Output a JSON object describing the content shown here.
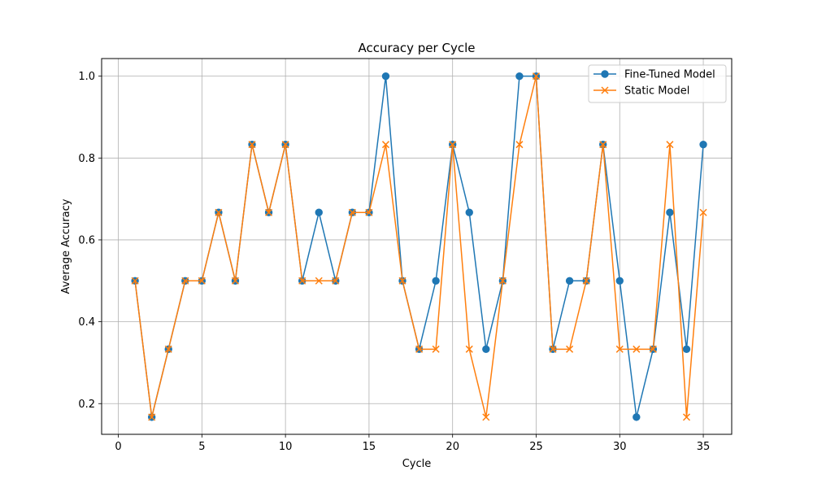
{
  "chart_data": {
    "type": "line",
    "title": "Accuracy per Cycle",
    "xlabel": "Cycle",
    "ylabel": "Average Accuracy",
    "xlim": [
      -1,
      36.7
    ],
    "ylim": [
      0.125,
      1.043
    ],
    "xticks": [
      0,
      5,
      10,
      15,
      20,
      25,
      30,
      35
    ],
    "yticks": [
      0.2,
      0.4,
      0.6,
      0.8,
      1.0
    ],
    "ytick_labels": [
      "0.2",
      "0.4",
      "0.6",
      "0.8",
      "1.0"
    ],
    "grid": true,
    "legend_position": "top-right",
    "x": [
      1,
      2,
      3,
      4,
      5,
      6,
      7,
      8,
      9,
      10,
      11,
      12,
      13,
      14,
      15,
      16,
      17,
      18,
      19,
      20,
      21,
      22,
      23,
      24,
      25,
      26,
      27,
      28,
      29,
      30,
      31,
      32,
      33,
      34,
      35
    ],
    "series": [
      {
        "name": "Fine-Tuned Model",
        "color": "#1f77b4",
        "marker": "circle",
        "values": [
          0.5,
          0.167,
          0.333,
          0.5,
          0.5,
          0.667,
          0.5,
          0.833,
          0.667,
          0.833,
          0.5,
          0.667,
          0.5,
          0.667,
          0.667,
          1.0,
          0.5,
          0.333,
          0.5,
          0.833,
          0.667,
          0.333,
          0.5,
          1.0,
          1.0,
          0.333,
          0.5,
          0.5,
          0.833,
          0.5,
          0.167,
          0.333,
          0.667,
          0.333,
          0.833
        ]
      },
      {
        "name": "Static Model",
        "color": "#ff7f0e",
        "marker": "x",
        "values": [
          0.5,
          0.167,
          0.333,
          0.5,
          0.5,
          0.667,
          0.5,
          0.833,
          0.667,
          0.833,
          0.5,
          0.5,
          0.5,
          0.667,
          0.667,
          0.833,
          0.5,
          0.333,
          0.333,
          0.833,
          0.333,
          0.167,
          0.5,
          0.833,
          1.0,
          0.333,
          0.333,
          0.5,
          0.833,
          0.333,
          0.333,
          0.333,
          0.833,
          0.167,
          0.667
        ]
      }
    ]
  }
}
